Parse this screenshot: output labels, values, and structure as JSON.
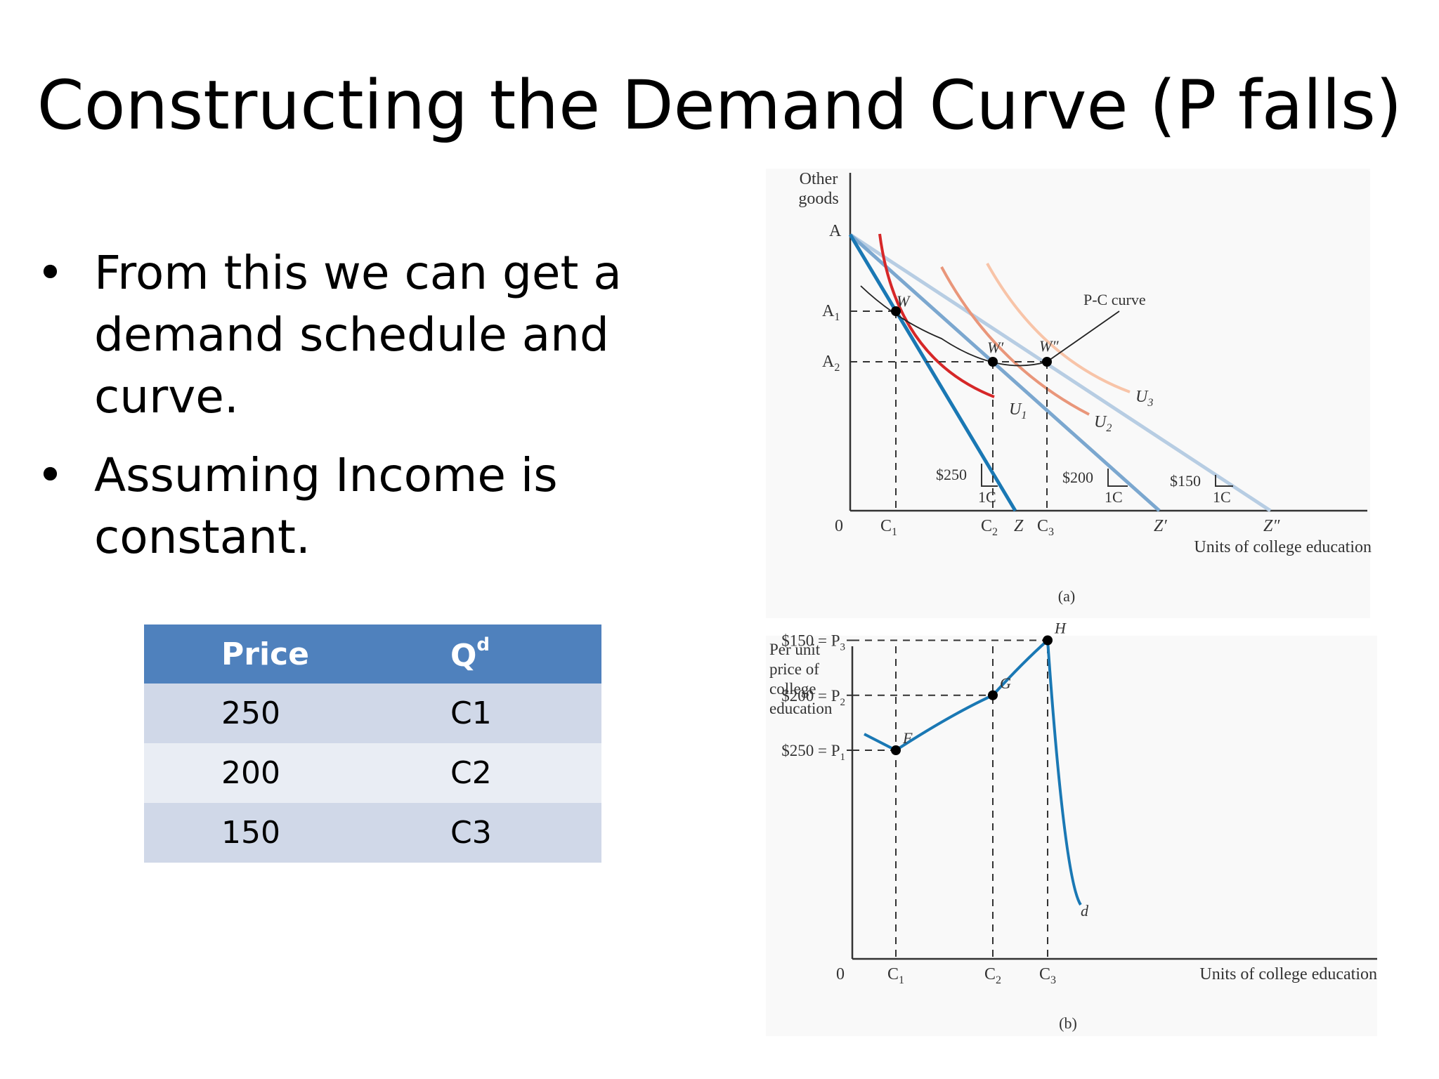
{
  "slide": {
    "title": "Constructing the Demand Curve (P falls)",
    "bullet_glyph": "•",
    "bullets": [
      "From this we can get a demand schedule and curve.",
      "Assuming Income is constant."
    ]
  },
  "table": {
    "header_price": "Price",
    "header_qd_main": "Q",
    "header_qd_sup": "d",
    "rows": [
      {
        "price": "250",
        "qd": "C1"
      },
      {
        "price": "200",
        "qd": "C2"
      },
      {
        "price": "150",
        "qd": "C3"
      }
    ]
  },
  "panel_a": {
    "y_axis_label_1": "Other",
    "y_axis_label_2": "goods",
    "x_axis_label": "Units of college education",
    "origin": "0",
    "y_ticks": {
      "A": "A",
      "A1": "A",
      "A1_sub": "1",
      "A2": "A",
      "A2_sub": "2"
    },
    "x_ticks": {
      "C1": "C",
      "C1_sub": "1",
      "C2": "C",
      "C2_sub": "2",
      "Z": "Z",
      "C3": "C",
      "C3_sub": "3",
      "Zp": "Z′",
      "Zpp": "Z″"
    },
    "points": {
      "W": "W",
      "Wp": "W′",
      "Wpp": "W″"
    },
    "curve_labels": {
      "pc": "P-C curve",
      "U1": "U",
      "U1_sub": "1",
      "U2": "U",
      "U2_sub": "2",
      "U3": "U",
      "U3_sub": "3"
    },
    "price_boxes": [
      {
        "price": "$250",
        "unit": "1C"
      },
      {
        "price": "$200",
        "unit": "1C"
      },
      {
        "price": "$150",
        "unit": "1C"
      }
    ],
    "caption": "(a)",
    "colors": {
      "budget_250": "#1a78b4",
      "budget_200": "#7ba7cf",
      "budget_150": "#b7cde3",
      "U1": "#d62728",
      "U2": "#e9967a",
      "U3": "#f8c4a8",
      "pc": "#222222"
    }
  },
  "panel_b": {
    "y_axis_label": [
      "Per unit",
      "price of",
      "college",
      "education"
    ],
    "x_axis_label": "Units of college education",
    "origin": "0",
    "y_ticks": [
      {
        "text": "$250 = P",
        "sub": "1"
      },
      {
        "text": "$200 = P",
        "sub": "2"
      },
      {
        "text": "$150 = P",
        "sub": "3"
      }
    ],
    "x_ticks": [
      {
        "text": "C",
        "sub": "1"
      },
      {
        "text": "C",
        "sub": "2"
      },
      {
        "text": "C",
        "sub": "3"
      }
    ],
    "points": {
      "F": "F",
      "G": "G",
      "H": "H"
    },
    "curve_label": "d",
    "caption": "(b)",
    "colors": {
      "demand": "#1a78b4"
    }
  },
  "chart_data": {
    "type": "line",
    "title": "",
    "xlabel": "Units of college education",
    "ylabel": "Per unit price of college education",
    "categories": [
      "C1",
      "C2",
      "C3"
    ],
    "series": [
      {
        "name": "d",
        "values": [
          250,
          200,
          150
        ]
      }
    ]
  }
}
